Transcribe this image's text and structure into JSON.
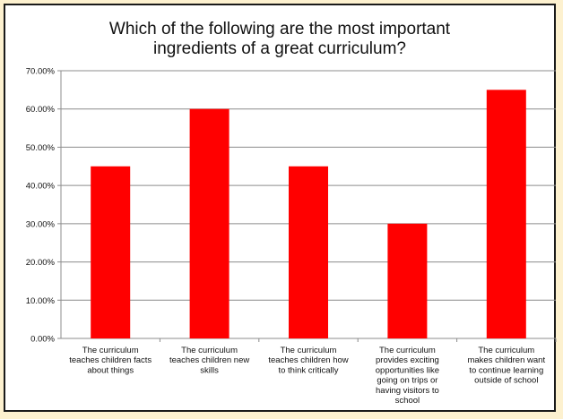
{
  "chart_data": {
    "type": "bar",
    "title": "Which of the following are the most important\ningredients of a great curriculum?",
    "xlabel": "",
    "ylabel": "",
    "ylim": [
      0,
      0.7
    ],
    "yticks": [
      "0.00%",
      "10.00%",
      "20.00%",
      "30.00%",
      "40.00%",
      "50.00%",
      "60.00%",
      "70.00%"
    ],
    "grid": true,
    "bar_color": "#ff0000",
    "categories": [
      [
        "The curriculum",
        "teaches children facts",
        "about things"
      ],
      [
        "The curriculum",
        "teaches children new",
        "skills"
      ],
      [
        "The curriculum",
        "teaches children how",
        "to think critically"
      ],
      [
        "The curriculum",
        "provides exciting",
        "opportunities like",
        "going on trips or",
        "having visitors to",
        "school"
      ],
      [
        "The curriculum",
        "makes children want",
        "to continue learning",
        "outside of school"
      ]
    ],
    "values": [
      0.45,
      0.6,
      0.45,
      0.3,
      0.65
    ]
  }
}
